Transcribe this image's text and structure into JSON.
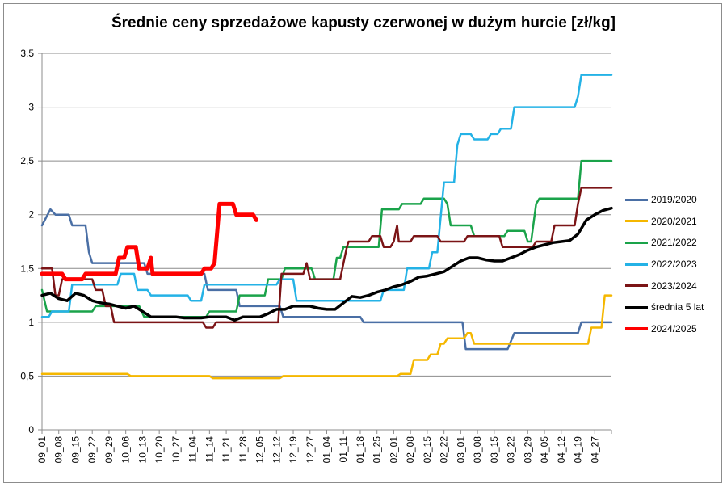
{
  "chart_data": {
    "type": "line",
    "title": "Średnie ceny sprzedażowe kapusty czerwonej w dużym hurcie [zł/kg]",
    "xlabel": "",
    "ylabel": "",
    "ylim": [
      0,
      3.5
    ],
    "yticks": [
      "0",
      "0,5",
      "1",
      "1,5",
      "2",
      "2,5",
      "3",
      "3,5"
    ],
    "yticks_values": [
      0,
      0.5,
      1,
      1.5,
      2,
      2.5,
      3,
      3.5
    ],
    "categories": [
      "09_01",
      "09_08",
      "09_15",
      "09_22",
      "09_29",
      "10_06",
      "10_13",
      "10_20",
      "10_27",
      "11_04",
      "11_14",
      "11_21",
      "11_28",
      "12_05",
      "12_12",
      "12_19",
      "12_27",
      "01_04",
      "01_11",
      "01_18",
      "01_25",
      "02_01",
      "02_08",
      "02_15",
      "02_22",
      "03_01",
      "03_08",
      "03_15",
      "03_22",
      "03_29",
      "04_05",
      "04_12",
      "04_19",
      "04_27"
    ],
    "x_range": [
      0,
      34
    ],
    "grid": "horizontal",
    "legend_position": "right",
    "series": [
      {
        "name": "2019/2020",
        "color": "#4a6fa5",
        "width": 2.5,
        "points": [
          [
            0,
            1.9
          ],
          [
            0.5,
            2.05
          ],
          [
            0.8,
            2.0
          ],
          [
            1.6,
            2.0
          ],
          [
            1.8,
            1.9
          ],
          [
            2.6,
            1.9
          ],
          [
            2.8,
            1.65
          ],
          [
            3,
            1.55
          ],
          [
            6.1,
            1.55
          ],
          [
            6.3,
            1.45
          ],
          [
            9.7,
            1.45
          ],
          [
            9.9,
            1.3
          ],
          [
            11.6,
            1.3
          ],
          [
            11.8,
            1.15
          ],
          [
            14.2,
            1.15
          ],
          [
            14.4,
            1.05
          ],
          [
            19,
            1.05
          ],
          [
            19.2,
            1.0
          ],
          [
            25.1,
            1.0
          ],
          [
            25.3,
            0.75
          ],
          [
            27.8,
            0.75
          ],
          [
            28.2,
            0.9
          ],
          [
            32,
            0.9
          ],
          [
            32.2,
            1.0
          ],
          [
            34,
            1.0
          ]
        ]
      },
      {
        "name": "2020/2021",
        "color": "#f5b700",
        "width": 2.5,
        "points": [
          [
            0,
            0.52
          ],
          [
            5.1,
            0.52
          ],
          [
            5.3,
            0.5
          ],
          [
            10,
            0.5
          ],
          [
            10.2,
            0.48
          ],
          [
            14.2,
            0.48
          ],
          [
            14.4,
            0.5
          ],
          [
            21.2,
            0.5
          ],
          [
            21.4,
            0.52
          ],
          [
            22,
            0.52
          ],
          [
            22.2,
            0.65
          ],
          [
            23,
            0.65
          ],
          [
            23.2,
            0.7
          ],
          [
            23.6,
            0.7
          ],
          [
            23.8,
            0.8
          ],
          [
            24,
            0.8
          ],
          [
            24.2,
            0.85
          ],
          [
            25.2,
            0.85
          ],
          [
            25.4,
            0.9
          ],
          [
            25.6,
            0.9
          ],
          [
            25.8,
            0.8
          ],
          [
            32.6,
            0.8
          ],
          [
            32.8,
            0.95
          ],
          [
            33.4,
            0.95
          ],
          [
            33.6,
            1.25
          ],
          [
            34,
            1.25
          ]
        ]
      },
      {
        "name": "2021/2022",
        "color": "#1aa34a",
        "width": 2.5,
        "points": [
          [
            0,
            1.3
          ],
          [
            0.3,
            1.1
          ],
          [
            3,
            1.1
          ],
          [
            3.2,
            1.15
          ],
          [
            5.8,
            1.15
          ],
          [
            6.1,
            1.05
          ],
          [
            9.8,
            1.05
          ],
          [
            10,
            1.1
          ],
          [
            11.6,
            1.1
          ],
          [
            11.8,
            1.25
          ],
          [
            13.3,
            1.25
          ],
          [
            13.5,
            1.4
          ],
          [
            14.3,
            1.4
          ],
          [
            14.5,
            1.5
          ],
          [
            16.1,
            1.5
          ],
          [
            16.3,
            1.4
          ],
          [
            17.4,
            1.4
          ],
          [
            17.6,
            1.6
          ],
          [
            17.8,
            1.6
          ],
          [
            18,
            1.7
          ],
          [
            20.1,
            1.7
          ],
          [
            20.3,
            2.05
          ],
          [
            21.3,
            2.05
          ],
          [
            21.5,
            2.1
          ],
          [
            22.6,
            2.1
          ],
          [
            22.8,
            2.15
          ],
          [
            24,
            2.15
          ],
          [
            24.2,
            2.1
          ],
          [
            24.4,
            1.9
          ],
          [
            25.6,
            1.9
          ],
          [
            25.8,
            1.8
          ],
          [
            27.6,
            1.8
          ],
          [
            27.8,
            1.85
          ],
          [
            28.8,
            1.85
          ],
          [
            29,
            1.75
          ],
          [
            29.2,
            1.75
          ],
          [
            29.5,
            2.1
          ],
          [
            29.7,
            2.15
          ],
          [
            32,
            2.15
          ],
          [
            32.2,
            2.5
          ],
          [
            34,
            2.5
          ]
        ]
      },
      {
        "name": "2022/2023",
        "color": "#24b2e6",
        "width": 2.5,
        "points": [
          [
            0,
            1.05
          ],
          [
            0.4,
            1.05
          ],
          [
            0.6,
            1.1
          ],
          [
            1.6,
            1.1
          ],
          [
            1.8,
            1.35
          ],
          [
            4.5,
            1.35
          ],
          [
            4.7,
            1.45
          ],
          [
            5.5,
            1.45
          ],
          [
            5.7,
            1.3
          ],
          [
            6.3,
            1.3
          ],
          [
            6.5,
            1.25
          ],
          [
            8.7,
            1.25
          ],
          [
            8.9,
            1.2
          ],
          [
            9.5,
            1.2
          ],
          [
            9.7,
            1.35
          ],
          [
            14,
            1.35
          ],
          [
            14.2,
            1.4
          ],
          [
            15,
            1.4
          ],
          [
            15.2,
            1.2
          ],
          [
            20.2,
            1.2
          ],
          [
            20.4,
            1.3
          ],
          [
            21.6,
            1.3
          ],
          [
            21.8,
            1.5
          ],
          [
            23.1,
            1.5
          ],
          [
            23.3,
            1.65
          ],
          [
            23.6,
            1.65
          ],
          [
            24,
            2.3
          ],
          [
            24.6,
            2.3
          ],
          [
            24.8,
            2.65
          ],
          [
            25,
            2.75
          ],
          [
            25.6,
            2.75
          ],
          [
            25.8,
            2.7
          ],
          [
            26.6,
            2.7
          ],
          [
            26.8,
            2.75
          ],
          [
            27.2,
            2.75
          ],
          [
            27.4,
            2.8
          ],
          [
            28,
            2.8
          ],
          [
            28.2,
            3.0
          ],
          [
            31.8,
            3.0
          ],
          [
            32,
            3.1
          ],
          [
            32.2,
            3.3
          ],
          [
            34,
            3.3
          ]
        ]
      },
      {
        "name": "2023/2024",
        "color": "#7b1416",
        "width": 2.5,
        "points": [
          [
            0,
            1.5
          ],
          [
            0.6,
            1.5
          ],
          [
            0.8,
            1.25
          ],
          [
            1,
            1.25
          ],
          [
            1.2,
            1.4
          ],
          [
            3,
            1.4
          ],
          [
            3.2,
            1.3
          ],
          [
            3.6,
            1.3
          ],
          [
            3.8,
            1.15
          ],
          [
            4.1,
            1.15
          ],
          [
            4.3,
            1.0
          ],
          [
            9.6,
            1.0
          ],
          [
            9.8,
            0.95
          ],
          [
            10.2,
            0.95
          ],
          [
            10.4,
            1.0
          ],
          [
            14.1,
            1.0
          ],
          [
            14.3,
            1.45
          ],
          [
            15.6,
            1.45
          ],
          [
            15.8,
            1.55
          ],
          [
            16,
            1.4
          ],
          [
            17.8,
            1.4
          ],
          [
            18,
            1.55
          ],
          [
            18.2,
            1.7
          ],
          [
            18.3,
            1.75
          ],
          [
            19.5,
            1.75
          ],
          [
            19.7,
            1.8
          ],
          [
            20.2,
            1.8
          ],
          [
            20.4,
            1.7
          ],
          [
            20.8,
            1.7
          ],
          [
            21,
            1.75
          ],
          [
            21.2,
            1.9
          ],
          [
            21.3,
            1.75
          ],
          [
            22,
            1.75
          ],
          [
            22.2,
            1.8
          ],
          [
            23.6,
            1.8
          ],
          [
            23.8,
            1.75
          ],
          [
            25.2,
            1.75
          ],
          [
            25.4,
            1.8
          ],
          [
            27.3,
            1.8
          ],
          [
            27.5,
            1.7
          ],
          [
            29.3,
            1.7
          ],
          [
            29.5,
            1.75
          ],
          [
            30.4,
            1.75
          ],
          [
            30.6,
            1.9
          ],
          [
            31.8,
            1.9
          ],
          [
            32,
            2.1
          ],
          [
            32.2,
            2.25
          ],
          [
            34,
            2.25
          ]
        ]
      },
      {
        "name": "średnia 5 lat",
        "color": "#000000",
        "width": 3.5,
        "points": [
          [
            0,
            1.25
          ],
          [
            0.5,
            1.27
          ],
          [
            1,
            1.22
          ],
          [
            1.5,
            1.2
          ],
          [
            2,
            1.27
          ],
          [
            2.5,
            1.25
          ],
          [
            3,
            1.2
          ],
          [
            3.5,
            1.18
          ],
          [
            4,
            1.17
          ],
          [
            4.5,
            1.15
          ],
          [
            5,
            1.13
          ],
          [
            5.5,
            1.15
          ],
          [
            6,
            1.1
          ],
          [
            6.5,
            1.05
          ],
          [
            7,
            1.05
          ],
          [
            7.5,
            1.05
          ],
          [
            8,
            1.05
          ],
          [
            8.5,
            1.04
          ],
          [
            9,
            1.04
          ],
          [
            9.5,
            1.04
          ],
          [
            10,
            1.05
          ],
          [
            10.5,
            1.05
          ],
          [
            11,
            1.05
          ],
          [
            11.5,
            1.02
          ],
          [
            12,
            1.05
          ],
          [
            12.5,
            1.05
          ],
          [
            13,
            1.05
          ],
          [
            13.5,
            1.08
          ],
          [
            14,
            1.12
          ],
          [
            14.5,
            1.12
          ],
          [
            15,
            1.15
          ],
          [
            15.5,
            1.15
          ],
          [
            16,
            1.15
          ],
          [
            16.5,
            1.13
          ],
          [
            17,
            1.12
          ],
          [
            17.5,
            1.12
          ],
          [
            18,
            1.18
          ],
          [
            18.5,
            1.24
          ],
          [
            19,
            1.23
          ],
          [
            19.5,
            1.25
          ],
          [
            20,
            1.28
          ],
          [
            20.5,
            1.3
          ],
          [
            21,
            1.33
          ],
          [
            21.5,
            1.35
          ],
          [
            22,
            1.38
          ],
          [
            22.5,
            1.42
          ],
          [
            23,
            1.43
          ],
          [
            23.5,
            1.45
          ],
          [
            24,
            1.47
          ],
          [
            24.5,
            1.52
          ],
          [
            25,
            1.57
          ],
          [
            25.5,
            1.6
          ],
          [
            26,
            1.6
          ],
          [
            26.5,
            1.58
          ],
          [
            27,
            1.57
          ],
          [
            27.5,
            1.57
          ],
          [
            28,
            1.6
          ],
          [
            28.5,
            1.63
          ],
          [
            29,
            1.67
          ],
          [
            29.5,
            1.7
          ],
          [
            30,
            1.72
          ],
          [
            30.5,
            1.74
          ],
          [
            31,
            1.75
          ],
          [
            31.5,
            1.76
          ],
          [
            32,
            1.82
          ],
          [
            32.5,
            1.95
          ],
          [
            33,
            2.0
          ],
          [
            33.5,
            2.04
          ],
          [
            34,
            2.06
          ]
        ]
      },
      {
        "name": "2024/2025",
        "color": "#ff0000",
        "width": 5,
        "points": [
          [
            0,
            1.45
          ],
          [
            1.2,
            1.45
          ],
          [
            1.4,
            1.4
          ],
          [
            2.4,
            1.4
          ],
          [
            2.6,
            1.45
          ],
          [
            4.4,
            1.45
          ],
          [
            4.6,
            1.6
          ],
          [
            4.9,
            1.6
          ],
          [
            5.1,
            1.7
          ],
          [
            5.6,
            1.7
          ],
          [
            5.8,
            1.5
          ],
          [
            6.3,
            1.5
          ],
          [
            6.5,
            1.6
          ],
          [
            6.6,
            1.45
          ],
          [
            9.5,
            1.45
          ],
          [
            9.7,
            1.5
          ],
          [
            10.1,
            1.5
          ],
          [
            10.3,
            1.55
          ],
          [
            10.6,
            2.1
          ],
          [
            11.4,
            2.1
          ],
          [
            11.6,
            2.0
          ],
          [
            12.6,
            2.0
          ],
          [
            12.8,
            1.95
          ]
        ]
      }
    ]
  }
}
